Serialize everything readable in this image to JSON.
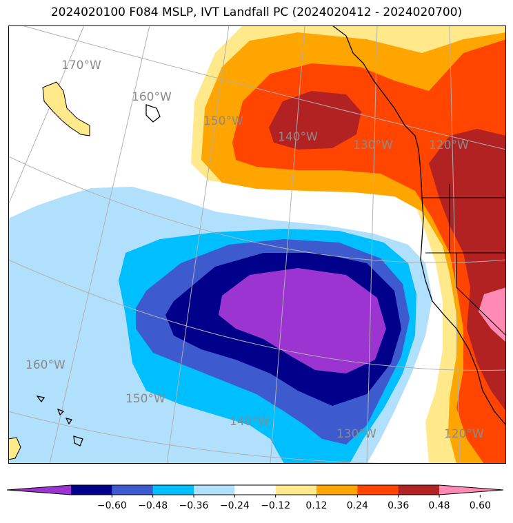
{
  "title": "2024020100 F084 MSLP, IVT Landfall PC (2024020412 - 2024020700)",
  "colors": {
    "purple": "#9b34d0",
    "navy": "#00008b",
    "royal": "#3d5acf",
    "deepsky": "#00bfff",
    "lightblue": "#b1e0fd",
    "white": "#ffffff",
    "lightyellow": "#ffe98b",
    "orange": "#ffa500",
    "orangered": "#ff4500",
    "firebrick": "#b22222",
    "pink": "#ff8ab4",
    "gridline": "#b0b0b0",
    "coast": "#000000"
  },
  "lon_labels": [
    "170°W",
    "160°W",
    "150°W",
    "140°W",
    "130°W",
    "120°W",
    "160°W",
    "150°W",
    "140°W",
    "130°W",
    "120°W"
  ],
  "colorbar": {
    "ticks": [
      "−0.60",
      "−0.48",
      "−0.36",
      "−0.24",
      "−0.12",
      "0.12",
      "0.24",
      "0.36",
      "0.48",
      "0.60"
    ],
    "segment_colors": [
      "#9b34d0",
      "#00008b",
      "#3d5acf",
      "#00bfff",
      "#b1e0fd",
      "#ffffff",
      "#ffe98b",
      "#ffa500",
      "#ff4500",
      "#b22222",
      "#ff8ab4"
    ]
  }
}
